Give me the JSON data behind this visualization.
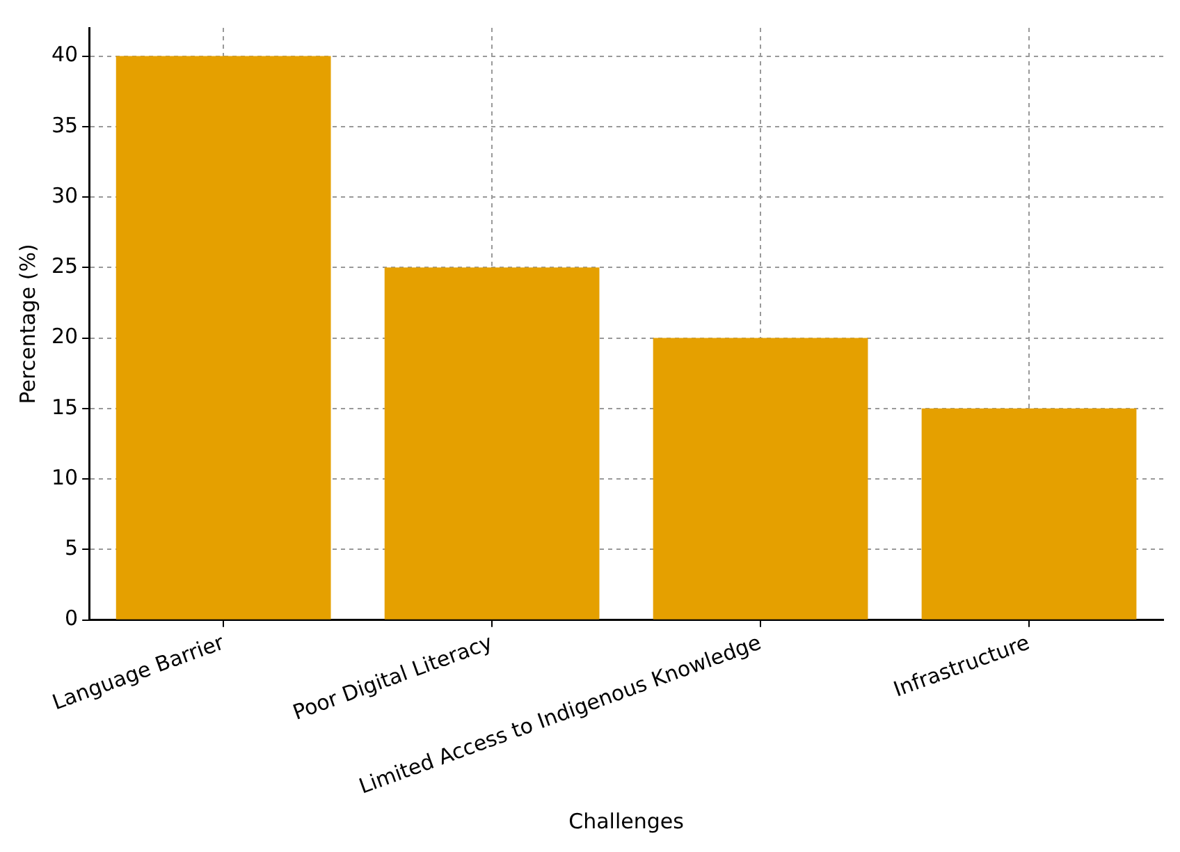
{
  "chart_data": {
    "type": "bar",
    "xlabel": "Challenges",
    "ylabel": "Percentage (%)",
    "categories": [
      "Language Barrier",
      "Poor Digital Literacy",
      "Limited Access to Indigenous Knowledge",
      "Infrastructure"
    ],
    "values": [
      40,
      25,
      20,
      15
    ],
    "color": "#e5a000",
    "ylim": [
      0,
      42
    ],
    "yticks": [
      0,
      5,
      10,
      15,
      20,
      25,
      30,
      35,
      40
    ],
    "grid": true,
    "legend": false
  }
}
